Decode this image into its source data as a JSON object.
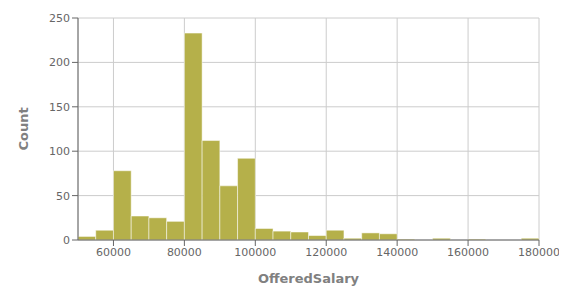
{
  "chart_data": {
    "type": "histogram",
    "bins": [
      50000,
      55000,
      60000,
      65000,
      70000,
      75000,
      80000,
      85000,
      90000,
      95000,
      100000,
      105000,
      110000,
      115000,
      120000,
      125000,
      130000,
      135000,
      140000,
      145000,
      150000,
      155000,
      160000,
      165000,
      170000,
      175000,
      180000
    ],
    "values": [
      4,
      11,
      78,
      27,
      25,
      21,
      233,
      112,
      61,
      92,
      13,
      10,
      9,
      5,
      11,
      2,
      8,
      7,
      1,
      0,
      2,
      0,
      1,
      0,
      0,
      2
    ],
    "color": "#b5b04a",
    "xlabel": "OfferedSalary",
    "ylabel": "Count",
    "xlim": [
      50000,
      180000
    ],
    "ylim": [
      0,
      250
    ],
    "xticks": [
      60000,
      80000,
      100000,
      120000,
      140000,
      160000,
      180000
    ],
    "yticks": [
      0,
      50,
      100,
      150,
      200,
      250
    ],
    "grid": true
  }
}
